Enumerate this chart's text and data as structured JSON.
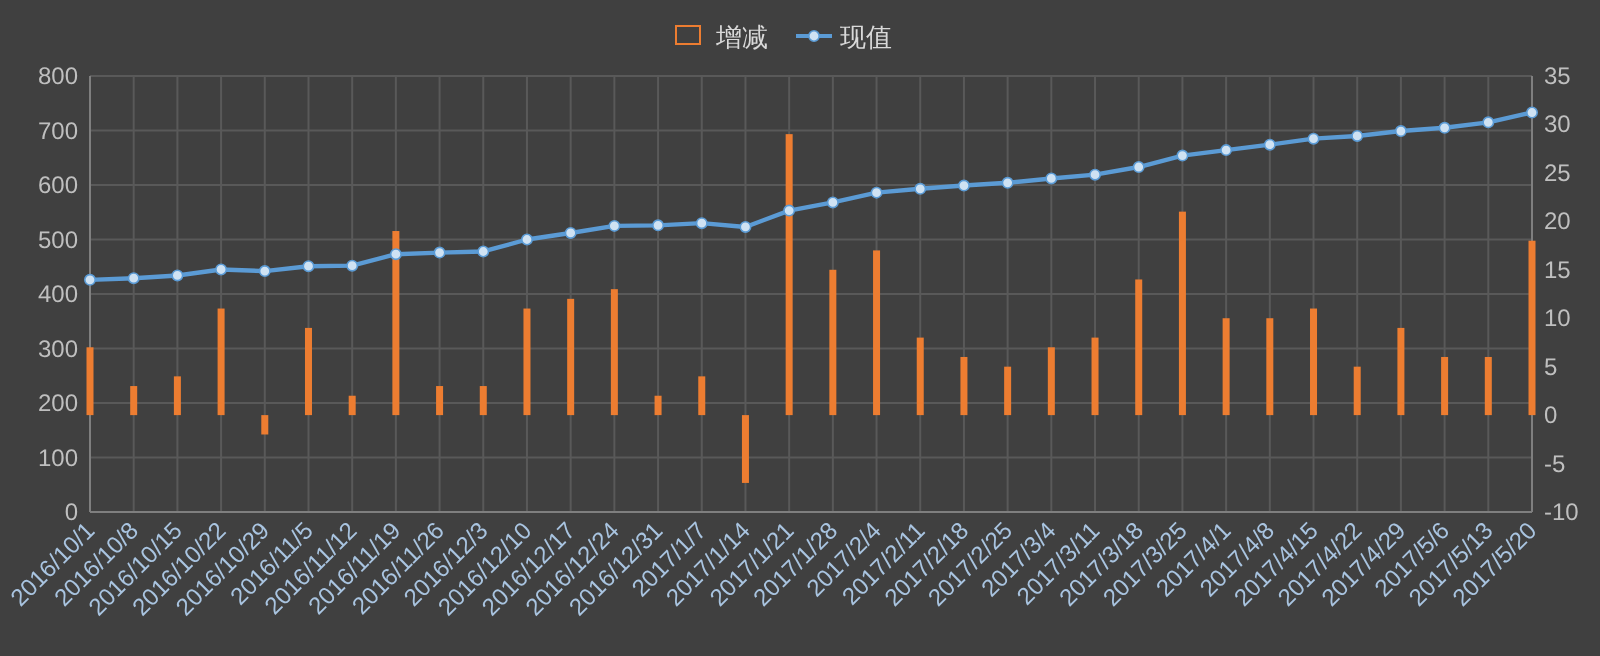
{
  "chart_data": {
    "type": "bar",
    "categories": [
      "2016/10/1",
      "2016/10/8",
      "2016/10/15",
      "2016/10/22",
      "2016/10/29",
      "2016/11/5",
      "2016/11/12",
      "2016/11/19",
      "2016/11/26",
      "2016/12/3",
      "2016/12/10",
      "2016/12/17",
      "2016/12/24",
      "2016/12/31",
      "2017/1/7",
      "2017/1/14",
      "2017/1/21",
      "2017/1/28",
      "2017/2/4",
      "2017/2/11",
      "2017/2/18",
      "2017/2/25",
      "2017/3/4",
      "2017/3/11",
      "2017/3/18",
      "2017/3/25",
      "2017/4/1",
      "2017/4/8",
      "2017/4/15",
      "2017/4/22",
      "2017/4/29",
      "2017/5/6",
      "2017/5/13",
      "2017/5/20"
    ],
    "series": [
      {
        "name": "增减",
        "type": "bar",
        "axis": "y2",
        "color": "#ed7d31",
        "values": [
          7,
          3,
          4,
          11,
          -2,
          9,
          2,
          19,
          3,
          3,
          11,
          12,
          13,
          2,
          4,
          -7,
          29,
          15,
          17,
          8,
          6,
          5,
          7,
          8,
          14,
          21,
          10,
          10,
          11,
          5,
          9,
          6,
          6,
          18
        ]
      },
      {
        "name": "现值",
        "type": "line",
        "color": "#5b9bd5",
        "values": [
          426,
          429,
          434,
          445,
          442,
          451,
          452,
          473,
          476,
          478,
          500,
          512,
          525,
          526,
          530,
          523,
          553,
          568,
          586,
          593,
          599,
          604,
          612,
          619,
          633,
          654,
          664,
          674,
          685,
          690,
          699,
          705,
          715,
          733
        ]
      }
    ],
    "ylim": [
      0,
      800
    ],
    "yticks": [
      0,
      100,
      200,
      300,
      400,
      500,
      600,
      700,
      800
    ],
    "y2lim": [
      -10,
      35
    ],
    "y2ticks": [
      -10,
      -5,
      0,
      5,
      10,
      15,
      20,
      25,
      30,
      35
    ],
    "grid": true,
    "legend": "top",
    "marker": "circle"
  }
}
